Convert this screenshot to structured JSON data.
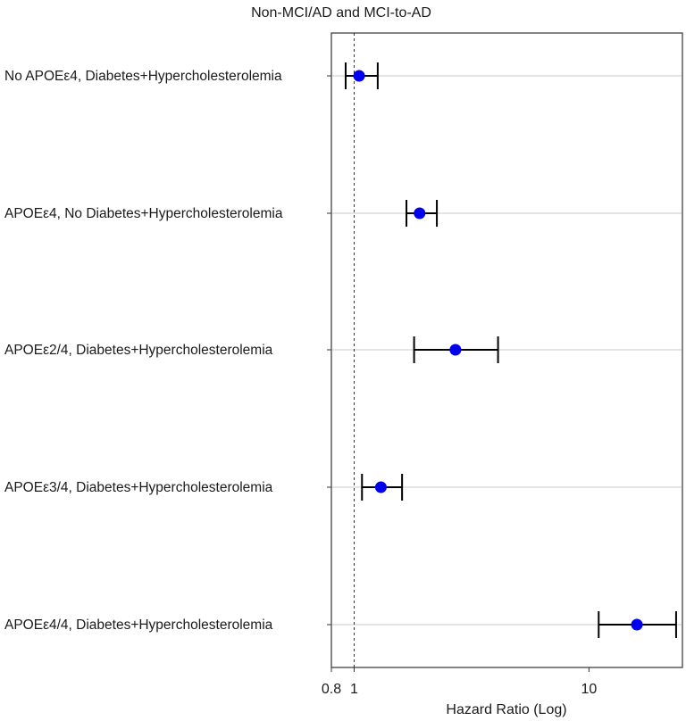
{
  "chart_data": {
    "type": "scatter",
    "subtype": "forest-plot",
    "title": "Non-MCI/AD and MCI-to-AD",
    "xlabel": "Hazard Ratio (Log)",
    "ylabel": "",
    "xscale": "log",
    "xlim": [
      0.8,
      25
    ],
    "xticks": [
      0.8,
      1,
      10
    ],
    "xtick_labels": [
      "0.8",
      "1",
      "10"
    ],
    "reference_line": 1,
    "grid": "horizontal",
    "point_color": "#0000ee",
    "categories": [
      "No APOEε4, Diabetes+Hypercholesterolemia",
      "APOEε4, No Diabetes+Hypercholesterolemia",
      "APOEε2/4, Diabetes+Hypercholesterolemia",
      "APOEε3/4, Diabetes+Hypercholesterolemia",
      "APOEε4/4, Diabetes+Hypercholesterolemia"
    ],
    "hr": [
      1.05,
      1.9,
      2.7,
      1.3,
      16.0
    ],
    "ci_low": [
      0.92,
      1.67,
      1.8,
      1.08,
      11.0
    ],
    "ci_high": [
      1.26,
      2.25,
      4.1,
      1.6,
      23.5
    ]
  }
}
